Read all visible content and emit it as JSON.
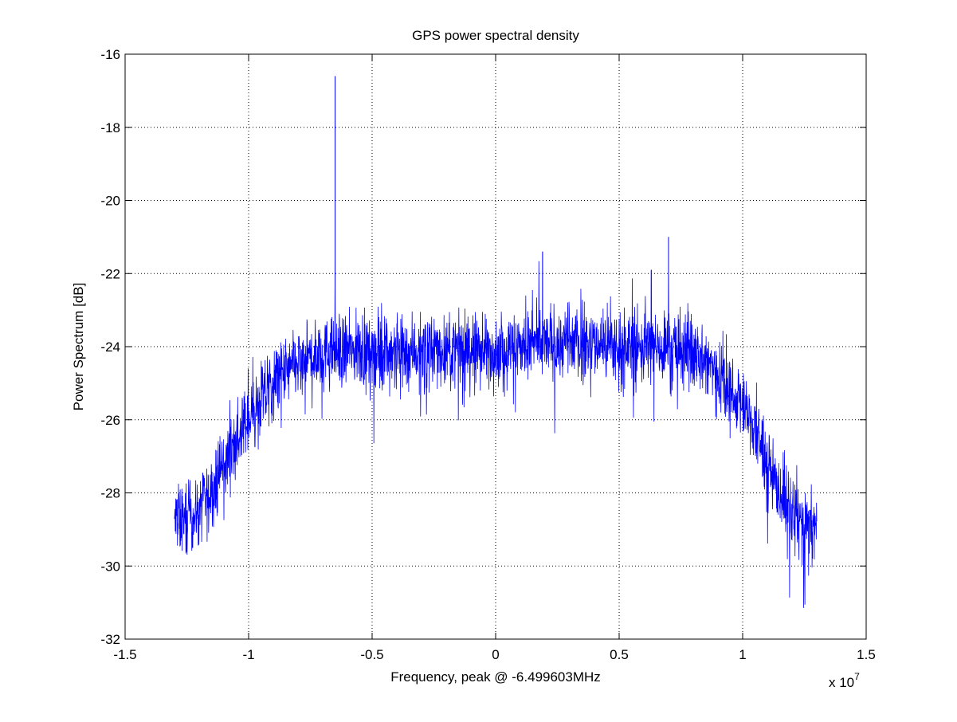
{
  "chart_data": {
    "type": "line",
    "title": "GPS power spectral density",
    "xlabel": "Frequency, peak @ -6.499603MHz",
    "ylabel": "Power Spectrum [dB]",
    "x_exponent_label": {
      "base": "x 10",
      "exp": "7"
    },
    "xlim": [
      -1.5,
      1.5
    ],
    "ylim": [
      -32,
      -16
    ],
    "x_ticks": [
      -1.5,
      -1,
      -0.5,
      0,
      0.5,
      1,
      1.5
    ],
    "x_tick_labels": [
      "-1.5",
      "-1",
      "-0.5",
      "0",
      "0.5",
      "1",
      "1.5"
    ],
    "y_ticks": [
      -32,
      -30,
      -28,
      -26,
      -24,
      -22,
      -20,
      -18,
      -16
    ],
    "y_tick_labels": [
      "-32",
      "-30",
      "-28",
      "-26",
      "-24",
      "-22",
      "-20",
      "-18",
      "-16"
    ],
    "grid": true,
    "series": [
      {
        "color": "#0000ff",
        "x_units_note": "x values in units of 1e7 Hz",
        "x_range": [
          -1.3,
          1.3
        ],
        "envelope": {
          "x": [
            -1.3,
            -1.25,
            -1.2,
            -1.15,
            -1.1,
            -1.05,
            -1.0,
            -0.95,
            -0.9,
            -0.85,
            -0.8,
            -0.75,
            -0.7,
            -0.6,
            -0.5,
            -0.4,
            -0.3,
            -0.2,
            -0.1,
            0.0,
            0.1,
            0.2,
            0.3,
            0.4,
            0.5,
            0.6,
            0.7,
            0.8,
            0.85,
            0.9,
            0.95,
            1.0,
            1.05,
            1.1,
            1.15,
            1.2,
            1.25,
            1.3
          ],
          "y": [
            -28.8,
            -28.7,
            -28.5,
            -28.0,
            -27.2,
            -26.6,
            -26.0,
            -25.5,
            -25.0,
            -24.7,
            -24.5,
            -24.3,
            -24.2,
            -24.1,
            -24.1,
            -24.1,
            -24.1,
            -24.1,
            -24.1,
            -24.1,
            -24.0,
            -23.9,
            -23.9,
            -23.9,
            -24.0,
            -24.0,
            -24.0,
            -24.2,
            -24.4,
            -24.7,
            -25.1,
            -25.6,
            -26.3,
            -27.2,
            -28.0,
            -28.6,
            -28.9,
            -29.0
          ]
        },
        "noise_amplitude_db": 0.6,
        "spikes": [
          {
            "x": -0.6499603,
            "y": -16.6
          },
          {
            "x": -0.65,
            "y": -21.7
          },
          {
            "x": 0.19,
            "y": -21.4
          },
          {
            "x": 0.7,
            "y": -21.0
          },
          {
            "x": 0.63,
            "y": -21.9
          }
        ]
      }
    ]
  }
}
